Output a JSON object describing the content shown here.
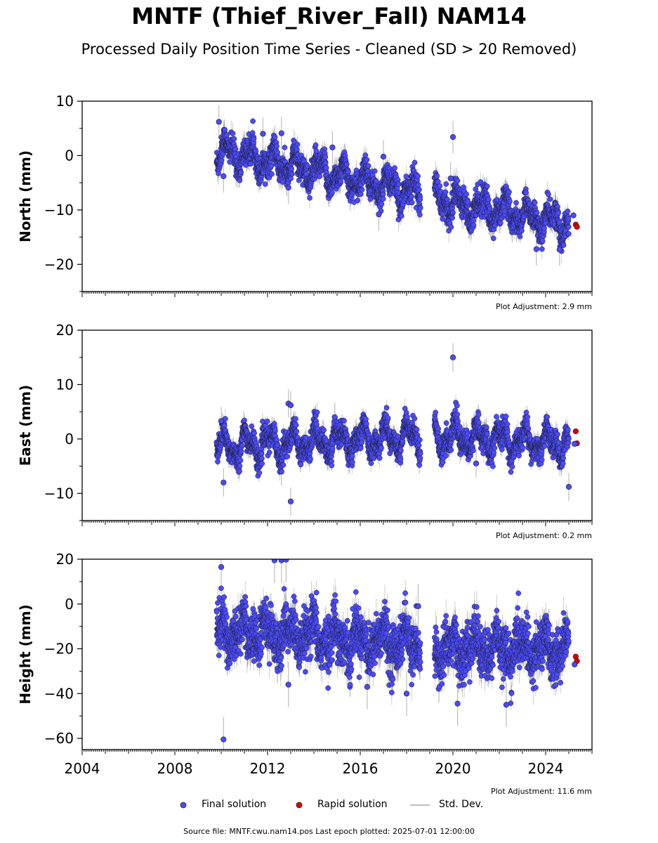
{
  "title": "MNTF (Thief_River_Fall) NAM14",
  "subtitle": "Processed Daily Position Time Series - Cleaned (SD > 20 Removed)",
  "legend": {
    "final": "Final solution",
    "rapid": "Rapid solution",
    "std": "Std. Dev."
  },
  "source": "Source file: MNTF.cwu.nam14.pos  Last epoch plotted: 2025-07-01 12:00:00",
  "colors": {
    "final": "#4a4aff",
    "rapid": "#e00000",
    "std": "#bdbdbd"
  },
  "chart_data": [
    {
      "type": "scatter",
      "ylabel": "North (mm)",
      "ylim": [
        -25,
        10
      ],
      "yticks": [
        -20,
        -10,
        0,
        10
      ],
      "yticklabels": [
        "−20",
        "−10",
        "0",
        "10"
      ],
      "xlim": [
        2004,
        2026
      ],
      "adjustment": "Plot Adjustment: 2.9 mm",
      "trend_segments": [
        [
          2009.8,
          1.0,
          2018.6,
          -7.0
        ],
        [
          2019.2,
          -8.0,
          2025.0,
          -12.5
        ]
      ],
      "seasonal_amp": 1.8,
      "scatter": 1.2,
      "err": 1.5,
      "outliers": [
        [
          2009.9,
          6.2
        ],
        [
          2010.1,
          -3.8
        ],
        [
          2011.8,
          4.0
        ],
        [
          2012.6,
          4.1
        ],
        [
          2012.9,
          -5.9
        ],
        [
          2014.8,
          1.5
        ],
        [
          2016.8,
          -10.8
        ],
        [
          2017.0,
          -0.2
        ],
        [
          2019.9,
          -4.2
        ],
        [
          2020.0,
          3.4
        ],
        [
          2023.6,
          -17.2
        ],
        [
          2024.6,
          -17.3
        ]
      ],
      "rapid": [
        [
          2025.3,
          -12.7
        ],
        [
          2025.35,
          -13.1
        ],
        [
          2025.2,
          -11.0
        ]
      ]
    },
    {
      "type": "scatter",
      "ylabel": "East (mm)",
      "ylim": [
        -15,
        20
      ],
      "yticks": [
        -10,
        0,
        10,
        20
      ],
      "yticklabels": [
        "−10",
        "0",
        "10",
        "20"
      ],
      "xlim": [
        2004,
        2026
      ],
      "adjustment": "Plot Adjustment: 0.2 mm",
      "trend_segments": [
        [
          2009.8,
          -1.5,
          2018.6,
          0.5
        ],
        [
          2019.2,
          0.5,
          2025.0,
          -1.0
        ]
      ],
      "seasonal_amp": 2.0,
      "scatter": 1.1,
      "err": 1.3,
      "outliers": [
        [
          2010.0,
          3.3
        ],
        [
          2010.1,
          -8.0
        ],
        [
          2012.9,
          6.5
        ],
        [
          2013.0,
          6.2
        ],
        [
          2012.6,
          -6.0
        ],
        [
          2013.0,
          -11.5
        ],
        [
          2014.9,
          4.0
        ],
        [
          2020.0,
          15.0
        ],
        [
          2021.0,
          -4.5
        ],
        [
          2025.0,
          -8.8
        ]
      ],
      "rapid": [
        [
          2025.3,
          1.4
        ],
        [
          2025.35,
          -0.8
        ],
        [
          2025.25,
          -0.9
        ]
      ]
    },
    {
      "type": "scatter",
      "ylabel": "Height (mm)",
      "ylim": [
        -65,
        20
      ],
      "yticks": [
        -60,
        -40,
        -20,
        0,
        20
      ],
      "yticklabels": [
        "−60",
        "−40",
        "−20",
        "0",
        "20"
      ],
      "xlim": [
        2004,
        2026
      ],
      "xticks": [
        2004,
        2008,
        2012,
        2016,
        2020,
        2024
      ],
      "xticklabels": [
        "2004",
        "2008",
        "2012",
        "2016",
        "2020",
        "2024"
      ],
      "adjustment": "Plot Adjustment: 11.6 mm",
      "trend_segments": [
        [
          2009.8,
          -12.0,
          2018.6,
          -18.0
        ],
        [
          2019.2,
          -20.0,
          2025.0,
          -20.0
        ]
      ],
      "seasonal_amp": 5.0,
      "scatter": 5.5,
      "err": 5.0,
      "outliers": [
        [
          2010.0,
          16.5
        ],
        [
          2010.1,
          -60.5
        ],
        [
          2012.3,
          19.5
        ],
        [
          2012.6,
          19.5
        ],
        [
          2012.8,
          19.8
        ],
        [
          2012.9,
          -36.0
        ],
        [
          2016.3,
          -37.0
        ],
        [
          2018.0,
          -40.0
        ],
        [
          2018.5,
          -1.0
        ],
        [
          2020.2,
          -44.5
        ],
        [
          2022.3,
          -45.0
        ]
      ],
      "rapid": [
        [
          2025.3,
          -23.5
        ],
        [
          2025.35,
          -25.5
        ],
        [
          2025.25,
          -27.0
        ]
      ]
    }
  ]
}
